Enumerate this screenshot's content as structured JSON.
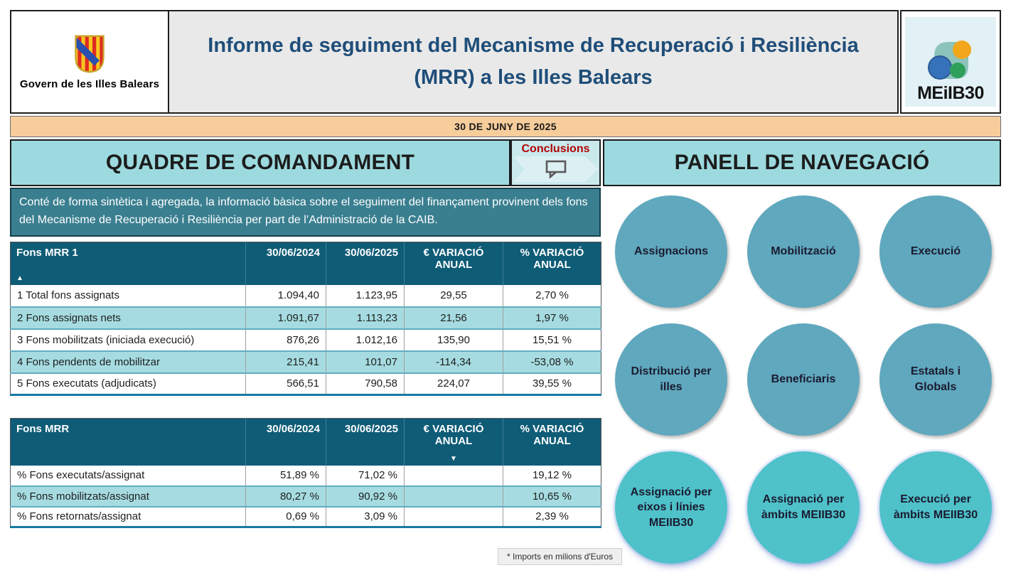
{
  "header": {
    "org_name": "Govern de les Illes Balears",
    "title": "Informe de seguiment del Mecanisme de Recuperació i Resiliència (MRR) a les Illes Balears",
    "app_logo_text": "MEiIB30"
  },
  "date_bar": {
    "label": "30 DE JUNY DE 2025"
  },
  "dashboard": {
    "section_title": "QUADRE DE COMANDAMENT",
    "conclusions_label": "Conclusions",
    "description": "Conté de forma sintètica i agregada, la informació bàsica sobre el seguiment del finançament provinent dels fons del Mecanisme de Recuperació i Resiliència per part de l’Administració de la CAIB.",
    "footnote": "* Imports en milions d'Euros"
  },
  "table1": {
    "columns": [
      "Fons MRR 1",
      "30/06/2024",
      "30/06/2025",
      "€ VARIACIÓ ANUAL",
      "% VARIACIÓ ANUAL"
    ],
    "sort_indicator": "▲",
    "rows": [
      [
        "1 Total fons assignats",
        "1.094,40",
        "1.123,95",
        "29,55",
        "2,70 %"
      ],
      [
        "2 Fons assignats nets",
        "1.091,67",
        "1.113,23",
        "21,56",
        "1,97 %"
      ],
      [
        "3 Fons mobilitzats (iniciada execució)",
        "876,26",
        "1.012,16",
        "135,90",
        "15,51 %"
      ],
      [
        "4 Fons pendents de mobilitzar",
        "215,41",
        "101,07",
        "-114,34",
        "-53,08 %"
      ],
      [
        "5 Fons executats (adjudicats)",
        "566,51",
        "790,58",
        "224,07",
        "39,55 %"
      ]
    ]
  },
  "table2": {
    "columns": [
      "Fons MRR",
      "30/06/2024",
      "30/06/2025",
      "€ VARIACIÓ ANUAL",
      "% VARIACIÓ ANUAL"
    ],
    "sort_indicator": "▼",
    "rows": [
      [
        "% Fons executats/assignat",
        "51,89 %",
        "71,02 %",
        "",
        "19,12 %"
      ],
      [
        "% Fons mobilitzats/assignat",
        "80,27 %",
        "90,92 %",
        "",
        "10,65 %"
      ],
      [
        "% Fons retornats/assignat",
        "0,69 %",
        "3,09 %",
        "",
        "2,39 %"
      ]
    ]
  },
  "navigation": {
    "section_title": "PANELL DE NAVEGACIÓ",
    "buttons": [
      {
        "label": "Assignacions",
        "variant": "steel"
      },
      {
        "label": "Mobilització",
        "variant": "steel"
      },
      {
        "label": "Execució",
        "variant": "steel"
      },
      {
        "label": "Distribució per illes",
        "variant": "steel"
      },
      {
        "label": "Beneficiaris",
        "variant": "steel"
      },
      {
        "label": "Estatals i Globals",
        "variant": "steel"
      },
      {
        "label": "Assignació per eixos i línies MEIIB30",
        "variant": "turquoise"
      },
      {
        "label": "Assignació per àmbits MEIIB30",
        "variant": "turquoise"
      },
      {
        "label": "Execució per àmbits MEIIB30",
        "variant": "turquoise"
      }
    ]
  },
  "colors": {
    "title_blue": "#1f4e79",
    "date_bar_peach": "#f6cd9b",
    "section_teal": "#9cdadf",
    "table_header_teal": "#0f5c77",
    "band_row_teal": "#a6dce1",
    "description_teal": "#3a7f90",
    "circle_steel_blue": "#5fa8be",
    "circle_turquoise": "#4ec1c9",
    "conclusions_red": "#b00505"
  }
}
